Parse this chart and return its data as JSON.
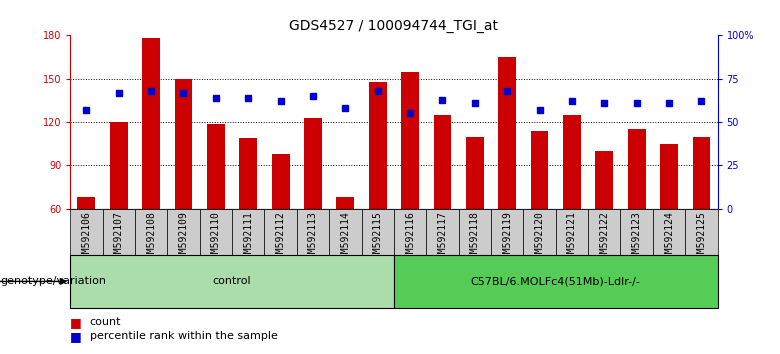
{
  "title": "GDS4527 / 100094744_TGI_at",
  "samples": [
    "GSM592106",
    "GSM592107",
    "GSM592108",
    "GSM592109",
    "GSM592110",
    "GSM592111",
    "GSM592112",
    "GSM592113",
    "GSM592114",
    "GSM592115",
    "GSM592116",
    "GSM592117",
    "GSM592118",
    "GSM592119",
    "GSM592120",
    "GSM592121",
    "GSM592122",
    "GSM592123",
    "GSM592124",
    "GSM592125"
  ],
  "counts": [
    68,
    120,
    178,
    150,
    119,
    109,
    98,
    123,
    68,
    148,
    155,
    125,
    110,
    165,
    114,
    125,
    100,
    115,
    105,
    110
  ],
  "percentile_ranks": [
    57,
    67,
    68,
    67,
    64,
    64,
    62,
    65,
    58,
    68,
    55,
    63,
    61,
    68,
    57,
    62,
    61,
    61,
    61,
    62
  ],
  "ymin": 60,
  "ymax": 180,
  "y2min": 0,
  "y2max": 100,
  "yticks": [
    60,
    90,
    120,
    150,
    180
  ],
  "y2ticks": [
    0,
    25,
    50,
    75,
    100
  ],
  "y2tick_labels": [
    "0",
    "25",
    "50",
    "75",
    "100%"
  ],
  "bar_color": "#cc0000",
  "dot_color": "#0000cc",
  "xticklabel_bg": "#cccccc",
  "control_label": "control",
  "group2_label": "C57BL/6.MOLFc4(51Mb)-Ldlr-/-",
  "control_color": "#aaddaa",
  "group2_color": "#55cc55",
  "group_label_prefix": "genotype/variation",
  "n_control": 10,
  "legend_count_label": "count",
  "legend_pct_label": "percentile rank within the sample",
  "title_fontsize": 10,
  "tick_fontsize": 7,
  "label_fontsize": 8,
  "grid_yticks": [
    90,
    120,
    150
  ]
}
